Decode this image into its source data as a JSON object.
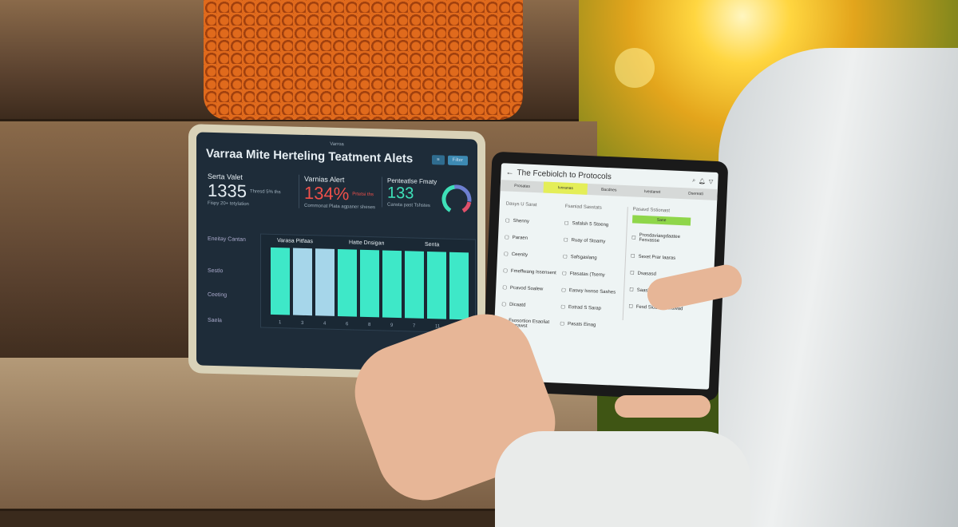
{
  "left_tablet": {
    "status_center": "Varroa",
    "title": "Varraa Mite Herteling Teatment Alets",
    "buttons": [
      "≡",
      "Filter"
    ],
    "kpis": [
      {
        "label": "Serta Valet",
        "value": "1335",
        "unit": "Thresd 5% ths",
        "note": "Fispy 20+ tetylation",
        "color": "#e8f0f5"
      },
      {
        "label": "Varnias Alert",
        "value": "134%",
        "unit": "Prtetsi ths",
        "note": "Commonat Plata agpaner sheses",
        "color": "#f0504a"
      },
      {
        "label": "Penteatlse Fmaty",
        "value": "133",
        "unit": "",
        "note": "Cansta past Tshstes",
        "color": "#3ee0b8"
      }
    ],
    "side_labels": [
      "Eneitay Cantan",
      "Sestlo",
      "Ceeting",
      "Saela"
    ],
    "chart_data": {
      "type": "bar",
      "group_labels": [
        "Varasa Pitfaas",
        "Hatte Dnsigan",
        "Senta"
      ],
      "categories": [
        "1",
        "3",
        "4",
        "6",
        "8",
        "9",
        "7",
        "11",
        "14"
      ],
      "values": [
        10,
        10,
        10,
        10,
        10,
        10,
        10,
        10,
        10
      ],
      "colors": [
        "#3ee8c8",
        "#a6d6ea",
        "#a6d6ea",
        "#3ee8c8",
        "#3ee8c8",
        "#3ee8c8",
        "#3ee8c8",
        "#3ee8c8",
        "#3ee8c8"
      ]
    },
    "gauge_colors": [
      "#3ee0b8",
      "#6d7fd0",
      "#e0506a"
    ]
  },
  "right_tablet": {
    "title": "The Fcebiolch to Protocols",
    "icons": [
      "search-icon",
      "bell-icon",
      "filter-icon"
    ],
    "tabs": [
      "Prosatas",
      "Ivnranas",
      "Bacdnes",
      "Ivestanet",
      "Dsereati"
    ],
    "active_tab": 1,
    "col1_header": "Dasys U Sarat",
    "col1": [
      "Shenny",
      "Paraen",
      "Ceenity",
      "Fmeffwang Issensent",
      "Pcavod Soalew",
      "Dicaatd",
      "Fsosortion Esaoliat Perrawst"
    ],
    "col2_header": "Fsaniad Sasstats",
    "col2": [
      "Safalsh 5 Stoeng",
      "Ruay of Stoamy",
      "Safsgaslang",
      "Ftasatas (Tsemy",
      "Easwy Issnse Sashes",
      "Eotrad S Sarap",
      "Pasats Einag"
    ],
    "col3_header": "Pasavd Sstionast",
    "col3_button": "Sane",
    "col3": [
      "Prosdaviasgdaatee Fesvasse",
      "Sexet Prar Iaaras",
      "Dsasasd",
      "Saaslasty Fsolesad",
      "Fesd Sioblar Ferawad"
    ],
    "accent": "#8fd64a",
    "tab_highlight": "#e4ee58"
  }
}
